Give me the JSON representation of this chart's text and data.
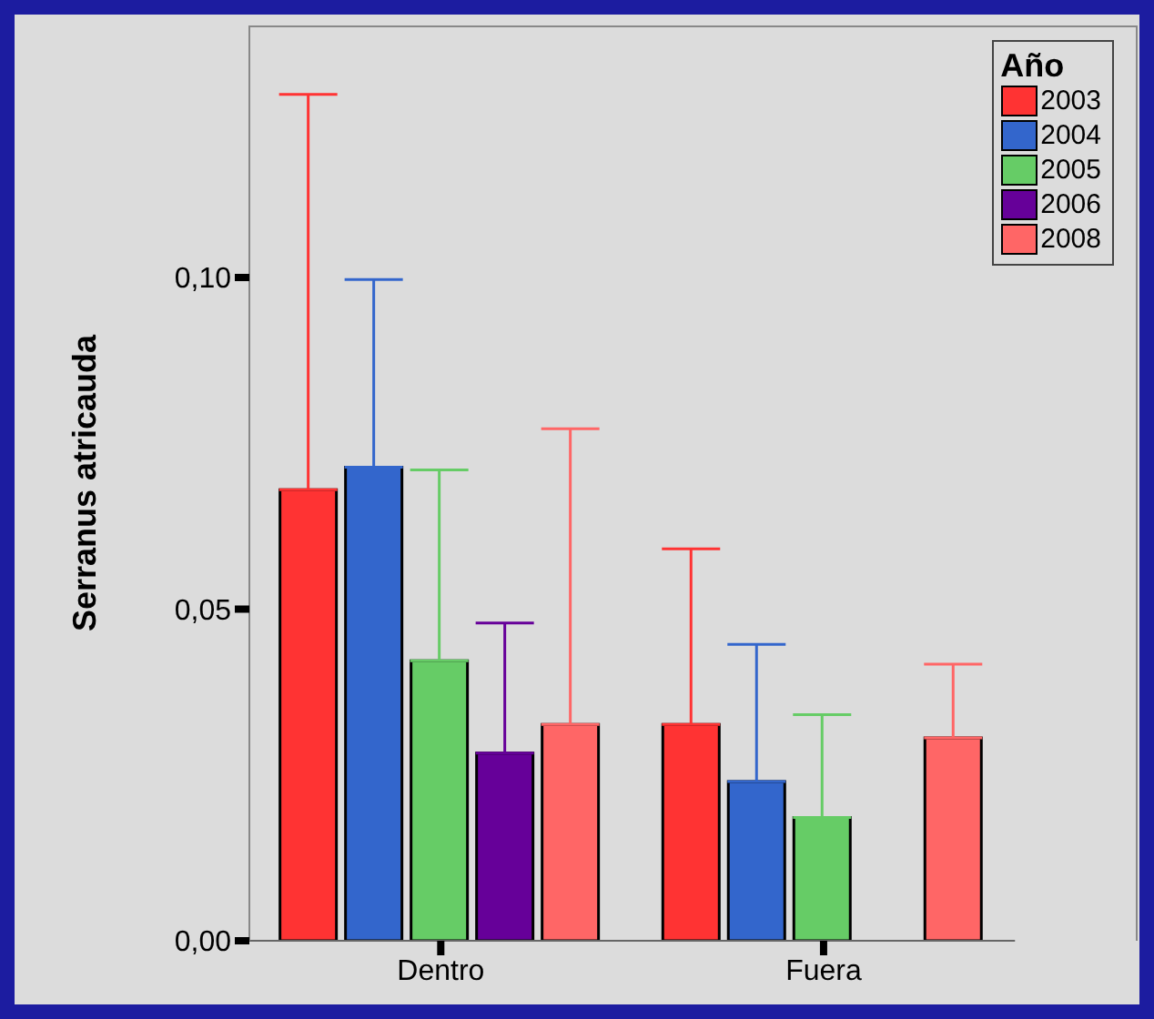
{
  "chart_data": {
    "type": "bar",
    "ylabel": "Serranus atricauda",
    "legend_title": "Año",
    "categories": [
      "Dentro",
      "Fuera"
    ],
    "series": [
      {
        "name": "2003",
        "color": "#ff3333",
        "values": [
          0.068,
          0.0326
        ],
        "errors": [
          [
            0.068,
            0.1276
          ],
          [
            0.0326,
            0.0591
          ]
        ]
      },
      {
        "name": "2004",
        "color": "#3366cc",
        "values": [
          0.0714,
          0.024
        ],
        "errors": [
          [
            0.0714,
            0.0997
          ],
          [
            0.024,
            0.0447
          ]
        ]
      },
      {
        "name": "2005",
        "color": "#66cc66",
        "values": [
          0.0422,
          0.0186
        ],
        "errors": [
          [
            0.0422,
            0.071
          ],
          [
            0.0186,
            0.0341
          ]
        ]
      },
      {
        "name": "2006",
        "color": "#660099",
        "values": [
          0.0283,
          0
        ],
        "errors": [
          [
            0.0283,
            0.0479
          ],
          null
        ]
      },
      {
        "name": "2008",
        "color": "#ff6666",
        "values": [
          0.0326,
          0.0306
        ],
        "errors": [
          [
            0.0326,
            0.0772
          ],
          [
            0.0306,
            0.0417
          ]
        ]
      }
    ],
    "ylim": [
      0,
      0.138
    ],
    "yticks": [
      {
        "value": 0,
        "label": "0,00"
      },
      {
        "value": 0.05,
        "label": "0,05"
      },
      {
        "value": 0.1,
        "label": "0,10"
      }
    ],
    "grid": false,
    "legend": "top right"
  }
}
